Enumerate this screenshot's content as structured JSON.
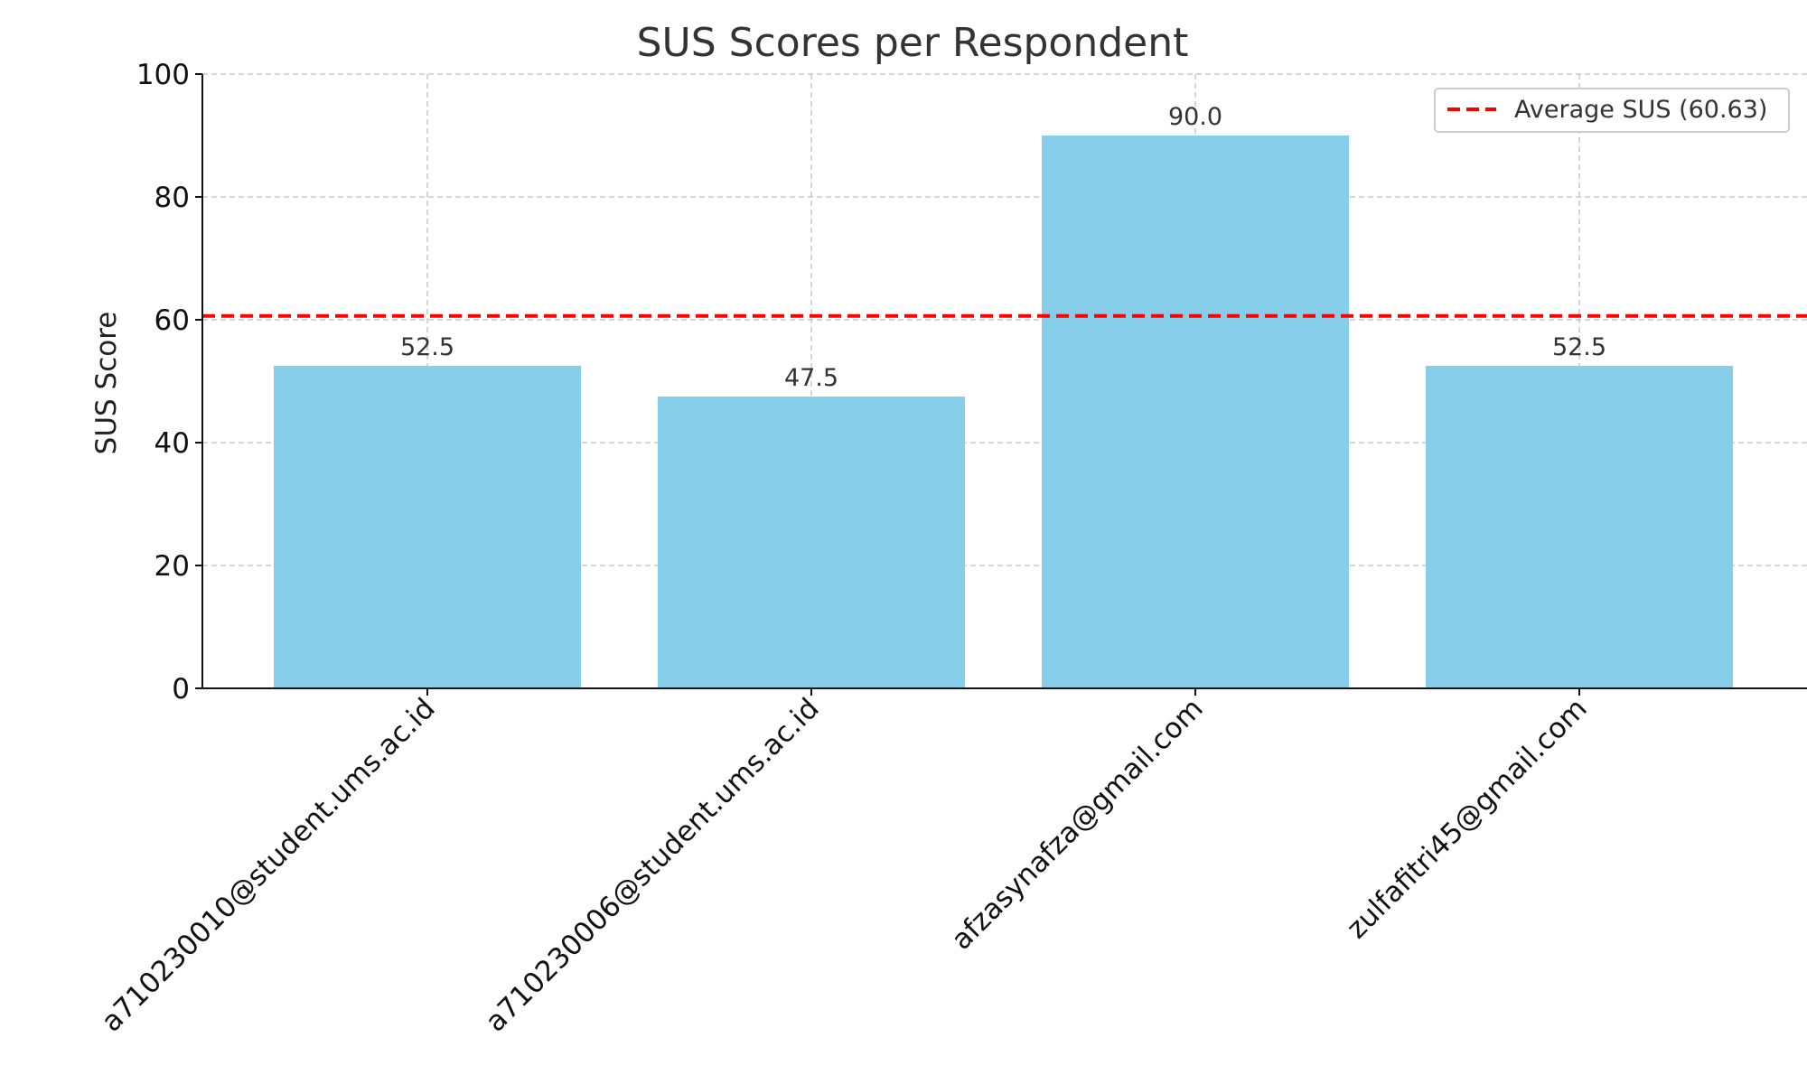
{
  "chart_data": {
    "type": "bar",
    "title": "SUS Scores per Respondent",
    "xlabel": "",
    "ylabel": "SUS Score",
    "categories": [
      "a710230010@student.ums.ac.id",
      "a710230006@student.ums.ac.id",
      "afzasynafza@gmail.com",
      "zulfafitri45@gmail.com"
    ],
    "values": [
      52.5,
      47.5,
      90.0,
      52.5
    ],
    "value_labels": [
      "52.5",
      "47.5",
      "90.0",
      "52.5"
    ],
    "ylim": [
      0,
      100
    ],
    "yticks": [
      0,
      20,
      40,
      60,
      80,
      100
    ],
    "ytick_labels": [
      "0",
      "20",
      "40",
      "60",
      "80",
      "100"
    ],
    "reference_line": {
      "value": 60.63,
      "label": "Average SUS (60.63)",
      "style": "dashed",
      "color": "#ff0000"
    },
    "bar_color": "#87ceeb",
    "grid": true,
    "legend_position": "top-right"
  }
}
